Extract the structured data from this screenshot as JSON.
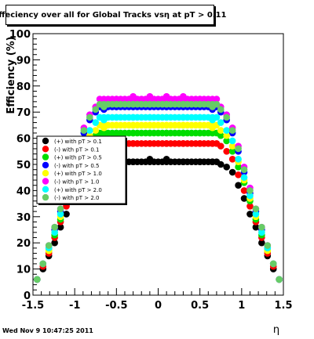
{
  "footer_text": "Wed Nov  9 10:47:25 2011",
  "chart_data": {
    "type": "scatter",
    "title": "Effeciency over all for Global Tracks vsη at pT > 0.11",
    "xlabel": "η",
    "ylabel": "Efficiency (%)",
    "xlim": [
      -1.5,
      1.5
    ],
    "ylim": [
      0,
      100
    ],
    "x_ticks": [
      "-1.5",
      "-1",
      "-0.5",
      "0",
      "0.5",
      "1",
      "1.5"
    ],
    "y_ticks": [
      "0",
      "10",
      "20",
      "30",
      "40",
      "50",
      "60",
      "70",
      "80",
      "90",
      "100"
    ],
    "grid": false,
    "legend_position": "left",
    "series": [
      {
        "name": "(+) with pT > 0.1",
        "color": "#000000",
        "plateau": 51,
        "x": [
          -1.45,
          -1.38,
          -1.31,
          -1.24,
          -1.17,
          -1.1,
          -1.03,
          -0.96,
          -0.89,
          -0.82,
          -0.75,
          -0.65,
          -0.5,
          -0.3,
          -0.1,
          0.1,
          0.3,
          0.5,
          0.65,
          0.75,
          0.82,
          0.89,
          0.96,
          1.03,
          1.1,
          1.17,
          1.24,
          1.31,
          1.38,
          1.45
        ],
        "y": [
          6,
          10,
          15,
          20,
          26,
          31,
          37,
          42,
          47,
          49,
          50,
          51,
          51,
          51,
          52,
          52,
          51,
          51,
          51,
          50,
          49,
          47,
          42,
          37,
          31,
          26,
          20,
          15,
          10,
          6
        ]
      },
      {
        "name": "(-) with pT > 0.1",
        "color": "#ff0000",
        "plateau": 58,
        "x": [
          -1.45,
          -1.38,
          -1.31,
          -1.24,
          -1.17,
          -1.1,
          -1.03,
          -0.96,
          -0.89,
          -0.82,
          -0.75,
          -0.65,
          -0.5,
          -0.3,
          -0.1,
          0.1,
          0.3,
          0.5,
          0.65,
          0.75,
          0.82,
          0.89,
          0.96,
          1.03,
          1.1,
          1.17,
          1.24,
          1.31,
          1.38,
          1.45
        ],
        "y": [
          6,
          11,
          16,
          22,
          28,
          34,
          40,
          46,
          52,
          55,
          57,
          58,
          58,
          58,
          58,
          58,
          58,
          58,
          58,
          57,
          55,
          52,
          46,
          40,
          34,
          28,
          22,
          16,
          11,
          6
        ]
      },
      {
        "name": "(+) with pT > 0.5",
        "color": "#00dd00",
        "plateau": 62,
        "x": [
          -1.45,
          -1.38,
          -1.31,
          -1.24,
          -1.17,
          -1.1,
          -1.03,
          -0.96,
          -0.89,
          -0.82,
          -0.75,
          -0.65,
          -0.5,
          -0.3,
          -0.1,
          0.1,
          0.3,
          0.5,
          0.65,
          0.75,
          0.82,
          0.89,
          0.96,
          1.03,
          1.1,
          1.17,
          1.24,
          1.31,
          1.38,
          1.45
        ],
        "y": [
          6,
          12,
          17,
          23,
          29,
          36,
          43,
          49,
          55,
          59,
          61,
          62,
          62,
          62,
          62,
          62,
          62,
          62,
          62,
          61,
          59,
          55,
          49,
          43,
          36,
          29,
          23,
          17,
          12,
          6
        ]
      },
      {
        "name": "(-) with pT > 0.5",
        "color": "#0000ff",
        "plateau": 72,
        "x": [
          -1.45,
          -1.38,
          -1.31,
          -1.24,
          -1.17,
          -1.1,
          -1.03,
          -0.96,
          -0.89,
          -0.82,
          -0.75,
          -0.65,
          -0.5,
          -0.3,
          -0.1,
          0.1,
          0.3,
          0.5,
          0.65,
          0.75,
          0.82,
          0.89,
          0.96,
          1.03,
          1.1,
          1.17,
          1.24,
          1.31,
          1.38,
          1.45
        ],
        "y": [
          6,
          12,
          18,
          25,
          32,
          39,
          47,
          55,
          62,
          67,
          70,
          71,
          72,
          72,
          72,
          72,
          72,
          72,
          71,
          70,
          67,
          62,
          55,
          47,
          39,
          32,
          25,
          18,
          12,
          6
        ]
      },
      {
        "name": "(+) with pT > 1.0",
        "color": "#ffff00",
        "plateau": 65,
        "x": [
          -1.45,
          -1.38,
          -1.31,
          -1.24,
          -1.17,
          -1.1,
          -1.03,
          -0.96,
          -0.89,
          -0.82,
          -0.75,
          -0.65,
          -0.5,
          -0.3,
          -0.1,
          0.1,
          0.3,
          0.5,
          0.65,
          0.75,
          0.82,
          0.89,
          0.96,
          1.03,
          1.1,
          1.17,
          1.24,
          1.31,
          1.38,
          1.45
        ],
        "y": [
          6,
          12,
          17,
          24,
          30,
          37,
          44,
          51,
          57,
          61,
          63,
          64,
          65,
          65,
          65,
          65,
          65,
          65,
          64,
          63,
          61,
          57,
          51,
          44,
          37,
          30,
          24,
          17,
          12,
          6
        ]
      },
      {
        "name": "(-) with pT > 1.0",
        "color": "#ff00ff",
        "plateau": 75,
        "x": [
          -1.45,
          -1.38,
          -1.31,
          -1.24,
          -1.17,
          -1.1,
          -1.03,
          -0.96,
          -0.89,
          -0.82,
          -0.75,
          -0.65,
          -0.5,
          -0.3,
          -0.1,
          0.1,
          0.3,
          0.5,
          0.65,
          0.75,
          0.82,
          0.89,
          0.96,
          1.03,
          1.1,
          1.17,
          1.24,
          1.31,
          1.38,
          1.45
        ],
        "y": [
          6,
          12,
          19,
          26,
          33,
          41,
          49,
          57,
          64,
          69,
          72,
          74,
          75,
          76,
          76,
          76,
          76,
          75,
          74,
          72,
          69,
          64,
          57,
          49,
          41,
          33,
          26,
          19,
          12,
          6
        ]
      },
      {
        "name": "(+) with pT > 2.0",
        "color": "#00ffff",
        "plateau": 68,
        "x": [
          -1.45,
          -1.38,
          -1.31,
          -1.24,
          -1.17,
          -1.1,
          -1.03,
          -0.96,
          -0.89,
          -0.82,
          -0.75,
          -0.65,
          -0.5,
          -0.3,
          -0.1,
          0.1,
          0.3,
          0.5,
          0.65,
          0.75,
          0.82,
          0.89,
          0.96,
          1.03,
          1.1,
          1.17,
          1.24,
          1.31,
          1.38,
          1.45
        ],
        "y": [
          6,
          12,
          18,
          24,
          31,
          38,
          45,
          52,
          59,
          63,
          66,
          67,
          68,
          68,
          68,
          68,
          68,
          68,
          67,
          66,
          63,
          59,
          52,
          45,
          38,
          31,
          24,
          18,
          12,
          6
        ]
      },
      {
        "name": "(-) with pT > 2.0",
        "color": "#66cc66",
        "plateau": 73,
        "x": [
          -1.45,
          -1.38,
          -1.31,
          -1.24,
          -1.17,
          -1.1,
          -1.03,
          -0.96,
          -0.89,
          -0.82,
          -0.75,
          -0.65,
          -0.5,
          -0.3,
          -0.1,
          0.1,
          0.3,
          0.5,
          0.65,
          0.75,
          0.82,
          0.89,
          0.96,
          1.03,
          1.1,
          1.17,
          1.24,
          1.31,
          1.38,
          1.45
        ],
        "y": [
          6,
          12,
          19,
          26,
          33,
          40,
          48,
          56,
          63,
          68,
          71,
          72,
          73,
          73,
          73,
          73,
          73,
          73,
          72,
          71,
          68,
          63,
          56,
          48,
          40,
          33,
          26,
          19,
          12,
          6
        ]
      }
    ]
  }
}
